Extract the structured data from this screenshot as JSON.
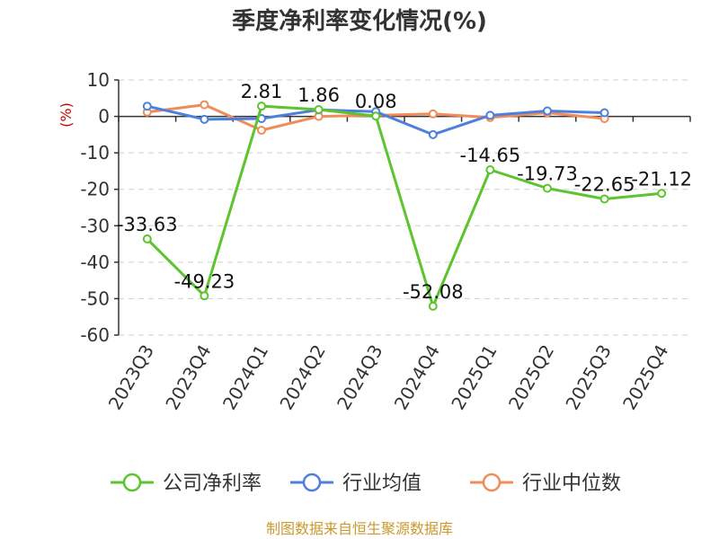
{
  "chart_data": {
    "type": "line",
    "title": "季度净利率变化情况(%)",
    "ylabel": "(%)",
    "categories": [
      "2023Q3",
      "2023Q4",
      "2024Q1",
      "2024Q2",
      "2024Q3",
      "2024Q4",
      "2025Q1",
      "2025Q2",
      "2025Q3",
      "2025Q4"
    ],
    "ylim": [
      -60,
      10
    ],
    "yticks": [
      10,
      0,
      -10,
      -20,
      -30,
      -40,
      -50,
      -60
    ],
    "grid": true,
    "legend_position": "bottom",
    "series": [
      {
        "name": "公司净利率",
        "color": "#5cc42c",
        "values": [
          -33.63,
          -49.23,
          2.81,
          1.86,
          0.08,
          -52.08,
          -14.65,
          -19.73,
          -22.65,
          -21.12
        ],
        "labels": [
          "-33.63",
          "-49.23",
          "2.81",
          "1.86",
          "0.08",
          "-52.08",
          "-14.65",
          "-19.73",
          "-22.65",
          "-21.12"
        ]
      },
      {
        "name": "行业均值",
        "color": "#4d7fdc",
        "values": [
          2.8,
          -0.8,
          -0.6,
          1.8,
          1.3,
          -5.0,
          0.3,
          1.5,
          1.0,
          null
        ]
      },
      {
        "name": "行业中位数",
        "color": "#f08c5a",
        "values": [
          1.2,
          3.2,
          -3.8,
          0.0,
          0.3,
          0.7,
          -0.3,
          1.0,
          -0.6,
          null
        ]
      }
    ]
  },
  "footer": "制图数据来自恒生聚源数据库"
}
